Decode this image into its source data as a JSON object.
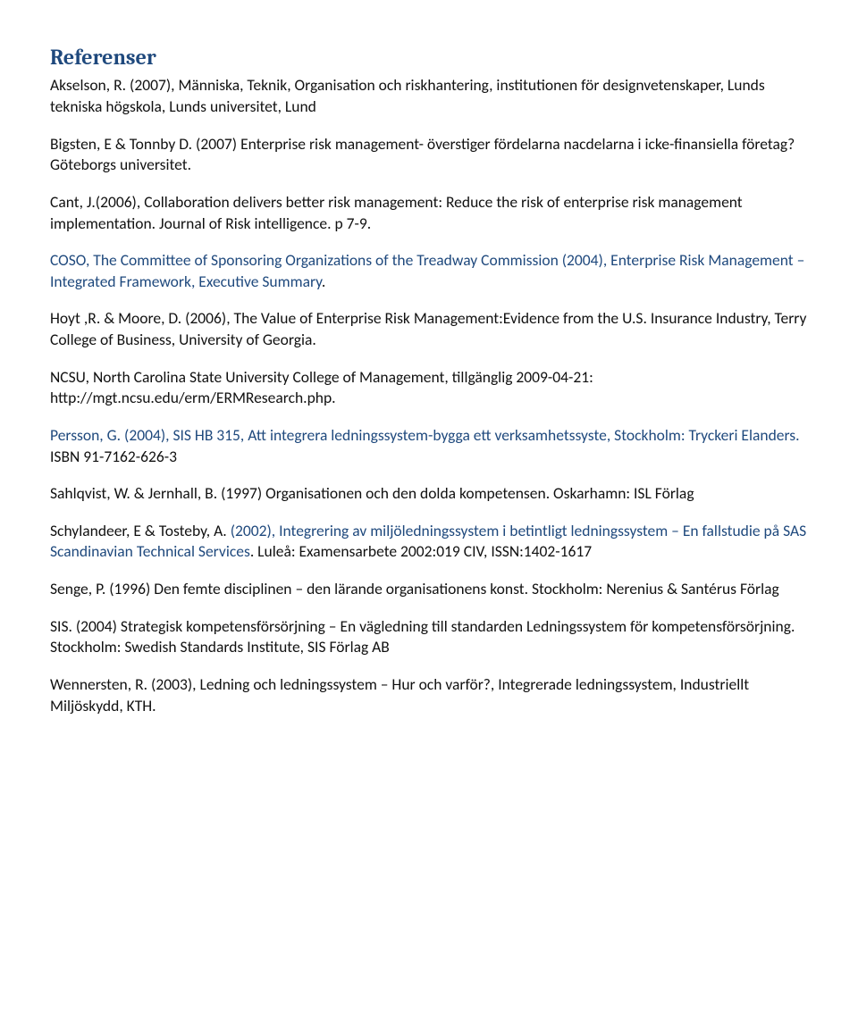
{
  "heading": "Referenser",
  "colors": {
    "heading": "#1f497d",
    "body_text": "#111111",
    "accent_blue": "#1f497d",
    "background": "#ffffff"
  },
  "typography": {
    "heading_font": "Cambria",
    "body_font": "Calibri",
    "heading_size_pt": 18,
    "body_size_pt": 13
  },
  "references": [
    {
      "text": "Akselson, R. (2007), Människa, Teknik, Organisation och riskhantering, institutionen för designvetenskaper, Lunds tekniska högskola, Lunds universitet, Lund"
    },
    {
      "text": "Bigsten, E & Tonnby D. (2007) Enterprise risk management- överstiger fördelarna nacdelarna i icke-finansiella företag? Göteborgs universitet."
    },
    {
      "text": "Cant, J.(2006), Collaboration delivers better risk management: Reduce the risk of enterprise risk management implementation. Journal of Risk intelligence. p 7-9."
    },
    {
      "prefix": "COSO, The Committee of Sponsoring Organizations of the Treadway Commission (2004), Enterprise Risk Management – Integrated Framework, Executive Summary",
      "suffix": "."
    },
    {
      "text": "Hoyt ,R. & Moore, D. (2006), The Value of Enterprise Risk Management:Evidence from the U.S. Insurance Industry, Terry College of Business, University of Georgia."
    },
    {
      "text": "NCSU, North Carolina State University College of Management, tillgänglig 2009-04-21: http://mgt.ncsu.edu/erm/ERMResearch.php."
    },
    {
      "prefix": "Persson, G. (2004), SIS HB 315, Att integrera ledningssystem-bygga ett verksamhetssyste, Stockholm: Tryckeri Elanders. ",
      "suffix": "ISBN 91-7162-626-3"
    },
    {
      "prefix": "Sahlqvist, W. & Jernhall, B. ",
      "mid": "(1997) Organisationen och den dolda kompetensen",
      "suffix": ". Oskarhamn: ISL Förlag"
    },
    {
      "prefix": "Schylandeer, E & Tosteby, A. ",
      "mid": "(2002), Integrering av miljöledningssystem i betintligt ledningssystem – En fallstudie på SAS Scandinavian Technical Services",
      "suffix": ". Luleå: Examensarbete 2002:019 CIV, ISSN:1402-1617"
    },
    {
      "prefix": "Senge, P. ",
      "mid": "(1996) Den femte disciplinen – den lärande organisationens konst",
      "suffix": ". Stockholm: Nerenius & Santérus Förlag"
    },
    {
      "prefix": "SIS. ",
      "mid": "(2004) Strategisk kompetensförsörjning – En vägledning till standarden Ledningssystem för kompetensförsörjning",
      "suffix": ". Stockholm: Swedish Standards Institute, SIS Förlag AB"
    },
    {
      "prefix": "Wennersten, R. ",
      "mid": "(2003), Ledning och ledningssystem – Hur och varför",
      "suffix": "?, Integrerade ledningssystem, Industriellt Miljöskydd, KTH."
    }
  ]
}
